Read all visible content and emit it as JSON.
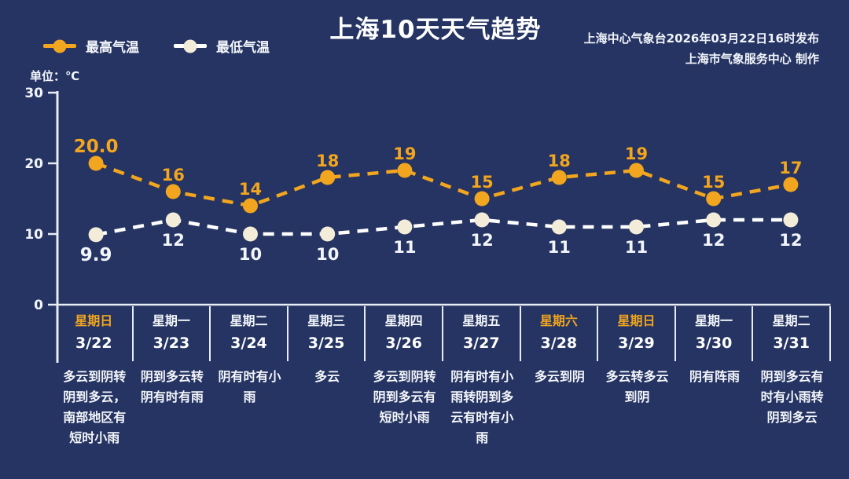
{
  "header": {
    "title": "上海10天天气趋势",
    "issued": "上海中心气象台2026年03月22日16时发布",
    "producer": "上海市气象服务中心 制作"
  },
  "legend": {
    "high_label": "最高气温",
    "low_label": "最低气温"
  },
  "unit_label": "单位：℃",
  "colors": {
    "background": "#253462",
    "high": "#F2A51E",
    "low_marker": "#F3ECD9",
    "low_line": "#FFFFFF",
    "low_label_text": "#F2F5FA",
    "axis": "#E8ECF4",
    "weekend": "#F2A51E",
    "text": "#FFFFFF"
  },
  "chart_data": {
    "type": "line",
    "title": "上海10天天气趋势",
    "unit": "℃",
    "ylim": [
      0,
      30
    ],
    "yticks": [
      0,
      10,
      20,
      30
    ],
    "grid": false,
    "legend_position": "top-left",
    "x": [
      "3/22",
      "3/23",
      "3/24",
      "3/25",
      "3/26",
      "3/27",
      "3/28",
      "3/29",
      "3/30",
      "3/31"
    ],
    "weekdays": [
      "星期日",
      "星期一",
      "星期二",
      "星期三",
      "星期四",
      "星期五",
      "星期六",
      "星期日",
      "星期一",
      "星期二"
    ],
    "weekend_flags": [
      true,
      false,
      false,
      false,
      false,
      false,
      true,
      true,
      false,
      false
    ],
    "series": [
      {
        "name": "最高气温",
        "values": [
          20.0,
          16,
          14,
          18,
          19,
          15,
          18,
          19,
          15,
          17
        ],
        "value_labels": [
          "20.0",
          "16",
          "14",
          "18",
          "19",
          "15",
          "18",
          "19",
          "15",
          "17"
        ]
      },
      {
        "name": "最低气温",
        "values": [
          9.9,
          12,
          10,
          10,
          11,
          12,
          11,
          11,
          12,
          12
        ],
        "value_labels": [
          "9.9",
          "12",
          "10",
          "10",
          "11",
          "12",
          "11",
          "11",
          "12",
          "12"
        ]
      }
    ],
    "weather": [
      "多云到阴转阴到多云，南部地区有短时小雨",
      "阴到多云转阴有时有雨",
      "阴有时有小雨",
      "多云",
      "多云到阴转阴到多云有短时小雨",
      "阴有时有小雨转阴到多云有时有小雨",
      "多云到阴",
      "多云转多云到阴",
      "阴有阵雨",
      "阴到多云有时有小雨转阴到多云"
    ]
  }
}
